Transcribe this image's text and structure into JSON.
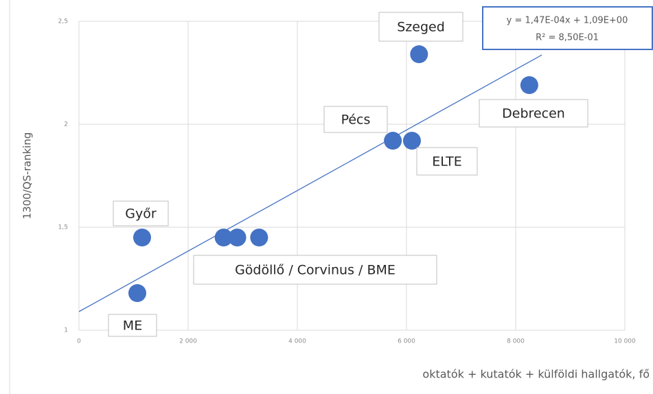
{
  "chart_data": {
    "type": "scatter",
    "x": [
      1069,
      1157,
      2650,
      2900,
      3300,
      5750,
      6100,
      6230,
      8250
    ],
    "y": [
      1.18,
      1.45,
      1.45,
      1.45,
      1.45,
      1.92,
      1.92,
      2.34,
      2.19
    ],
    "color": "#4472c4",
    "xlabel": "oktatók + kutatók + külföldi hallgatók, fő",
    "ylabel": "1300/QS-ranking",
    "xlim": [
      0,
      10000
    ],
    "ylim": [
      1,
      2.5
    ],
    "xticks": [
      0,
      {
        "value": 2000,
        "label": "2 000"
      },
      {
        "value": 4000,
        "label": "4 000"
      },
      {
        "value": 6000,
        "label": "6 000"
      },
      {
        "value": 8000,
        "label": "8 000"
      },
      {
        "value": 10000,
        "label": "10 000"
      }
    ],
    "yticks": [
      1,
      {
        "value": 1.5,
        "label": "1,5"
      },
      2,
      {
        "value": 2.5,
        "label": "2,5"
      }
    ],
    "grid": true,
    "annotations": [
      "ME",
      "Győr",
      "Gödöllő / Corvinus / BME",
      "Pécs",
      "ELTE",
      "Szeged",
      "Debrecen"
    ],
    "trendline": {
      "slope": 0.000147,
      "intercept": 1.09,
      "x": [
        0,
        8480
      ],
      "equation": "y = 1,47E-04x + 1,09E+00",
      "r2": "R² = 8,50E-01"
    }
  }
}
